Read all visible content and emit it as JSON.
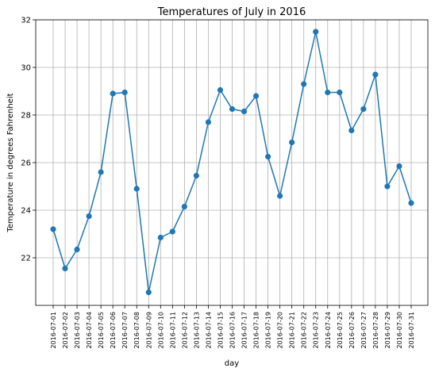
{
  "chart_data": {
    "type": "line",
    "title": "Temperatures of July in 2016",
    "xlabel": "day",
    "ylabel": "Temperature in degrees Fahrenheit",
    "x": [
      "2016-07-01",
      "2016-07-02",
      "2016-07-03",
      "2016-07-04",
      "2016-07-05",
      "2016-07-06",
      "2016-07-07",
      "2016-07-08",
      "2016-07-09",
      "2016-07-10",
      "2016-07-11",
      "2016-07-12",
      "2016-07-13",
      "2016-07-14",
      "2016-07-15",
      "2016-07-16",
      "2016-07-17",
      "2016-07-18",
      "2016-07-19",
      "2016-07-20",
      "2016-07-21",
      "2016-07-22",
      "2016-07-23",
      "2016-07-24",
      "2016-07-25",
      "2016-07-26",
      "2016-07-27",
      "2016-07-28",
      "2016-07-29",
      "2016-07-30",
      "2016-07-31"
    ],
    "values": [
      23.2,
      21.55,
      22.35,
      23.75,
      25.6,
      28.9,
      28.95,
      24.9,
      20.55,
      22.85,
      23.1,
      24.15,
      25.45,
      27.7,
      29.05,
      28.25,
      28.15,
      28.8,
      26.25,
      24.6,
      26.85,
      29.3,
      31.5,
      28.95,
      28.95,
      27.35,
      28.25,
      29.7,
      25.0,
      25.85,
      24.3
    ],
    "yticks": [
      22,
      24,
      26,
      28,
      30,
      32
    ],
    "ylim": [
      20.0,
      32.0
    ],
    "grid": true,
    "line_color": "#1f77b4",
    "marker": "circle"
  }
}
